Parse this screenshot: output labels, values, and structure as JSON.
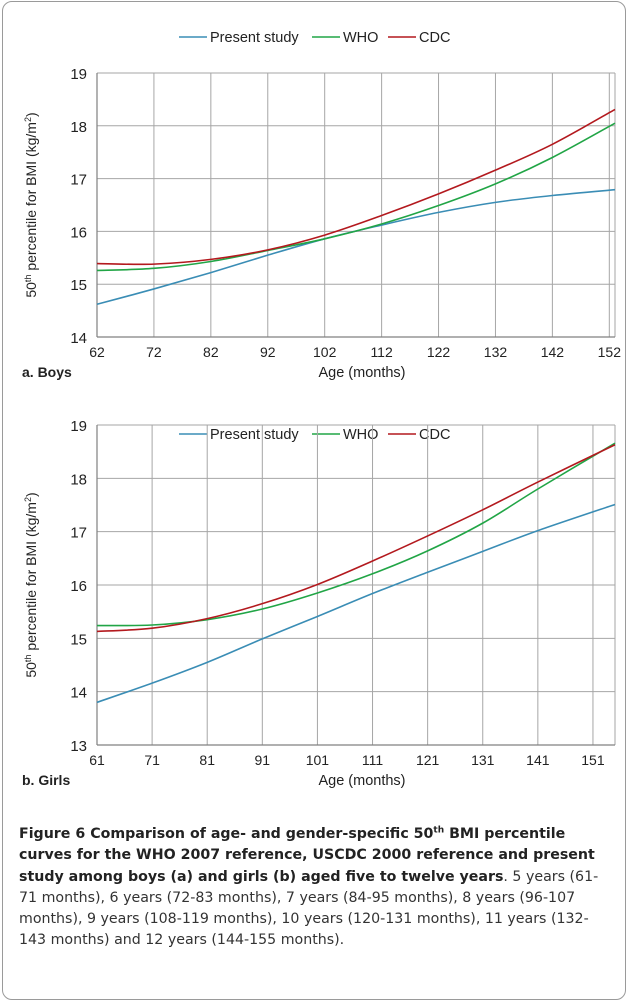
{
  "legend": [
    "Present study",
    "WHO",
    "CDC"
  ],
  "colors": {
    "present": "#3a8db5",
    "who": "#21a546",
    "cdc": "#b3191e",
    "grid": "#a6a6a6",
    "axis": "#808080"
  },
  "chart_data": [
    {
      "type": "line",
      "panel_label": "a. Boys",
      "xlabel": "Age (months)",
      "ylabel": "50th percentile for BMI (kg/m²)",
      "x_ticks": [
        62,
        72,
        82,
        92,
        102,
        112,
        122,
        132,
        142,
        152
      ],
      "y_ticks": [
        14,
        15,
        16,
        17,
        18,
        19
      ],
      "xlim": [
        62,
        153
      ],
      "ylim": [
        14,
        19
      ],
      "grid": true,
      "legend_position": "top",
      "series": [
        {
          "name": "Present study",
          "x": [
            62,
            72,
            82,
            92,
            102,
            112,
            122,
            132,
            142,
            153
          ],
          "y": [
            14.62,
            14.91,
            15.22,
            15.55,
            15.86,
            16.12,
            16.36,
            16.55,
            16.68,
            16.79
          ]
        },
        {
          "name": "WHO",
          "x": [
            62,
            72,
            82,
            92,
            102,
            112,
            122,
            132,
            142,
            153
          ],
          "y": [
            15.26,
            15.3,
            15.43,
            15.64,
            15.86,
            16.14,
            16.49,
            16.9,
            17.4,
            18.05
          ]
        },
        {
          "name": "CDC",
          "x": [
            62,
            72,
            82,
            92,
            102,
            112,
            122,
            132,
            142,
            153
          ],
          "y": [
            15.39,
            15.38,
            15.47,
            15.65,
            15.93,
            16.3,
            16.71,
            17.16,
            17.65,
            18.31
          ]
        }
      ]
    },
    {
      "type": "line",
      "panel_label": "b. Girls",
      "xlabel": "Age (months)",
      "ylabel": "50th percentile for BMI (kg/m²)",
      "x_ticks": [
        61,
        71,
        81,
        91,
        101,
        111,
        121,
        131,
        141,
        151
      ],
      "y_ticks": [
        13,
        14,
        15,
        16,
        17,
        18,
        19
      ],
      "xlim": [
        61,
        155
      ],
      "ylim": [
        13,
        19
      ],
      "grid": true,
      "legend_position": "top",
      "series": [
        {
          "name": "Present study",
          "x": [
            61,
            71,
            81,
            91,
            101,
            111,
            121,
            131,
            141,
            155
          ],
          "y": [
            13.8,
            14.16,
            14.55,
            14.99,
            15.41,
            15.84,
            16.24,
            16.63,
            17.02,
            17.51
          ]
        },
        {
          "name": "WHO",
          "x": [
            61,
            71,
            81,
            91,
            101,
            111,
            121,
            131,
            141,
            155
          ],
          "y": [
            15.24,
            15.25,
            15.35,
            15.55,
            15.85,
            16.21,
            16.64,
            17.16,
            17.8,
            18.66
          ]
        },
        {
          "name": "CDC",
          "x": [
            61,
            71,
            81,
            91,
            101,
            111,
            121,
            131,
            141,
            155
          ],
          "y": [
            15.13,
            15.19,
            15.37,
            15.65,
            16.01,
            16.45,
            16.92,
            17.41,
            17.93,
            18.63
          ]
        }
      ]
    }
  ],
  "caption": {
    "fig_label": "Figure 6",
    "title_a": "Comparison of age- and gender-specific 50",
    "title_sup": "th",
    "title_b": " BMI percentile curves for the WHO 2007 reference, USCDC 2000 reference and present study among boys (a) and girls (b) aged five to twelve years",
    "body": ". 5 years (61-71 months), 6 years (72-83 months), 7 years (84-95 months), 8 years (96-107 months), 9 years (108-119 months), 10 years (120-131 months), 11 years (132-143 months) and 12 years (144-155 months)."
  }
}
